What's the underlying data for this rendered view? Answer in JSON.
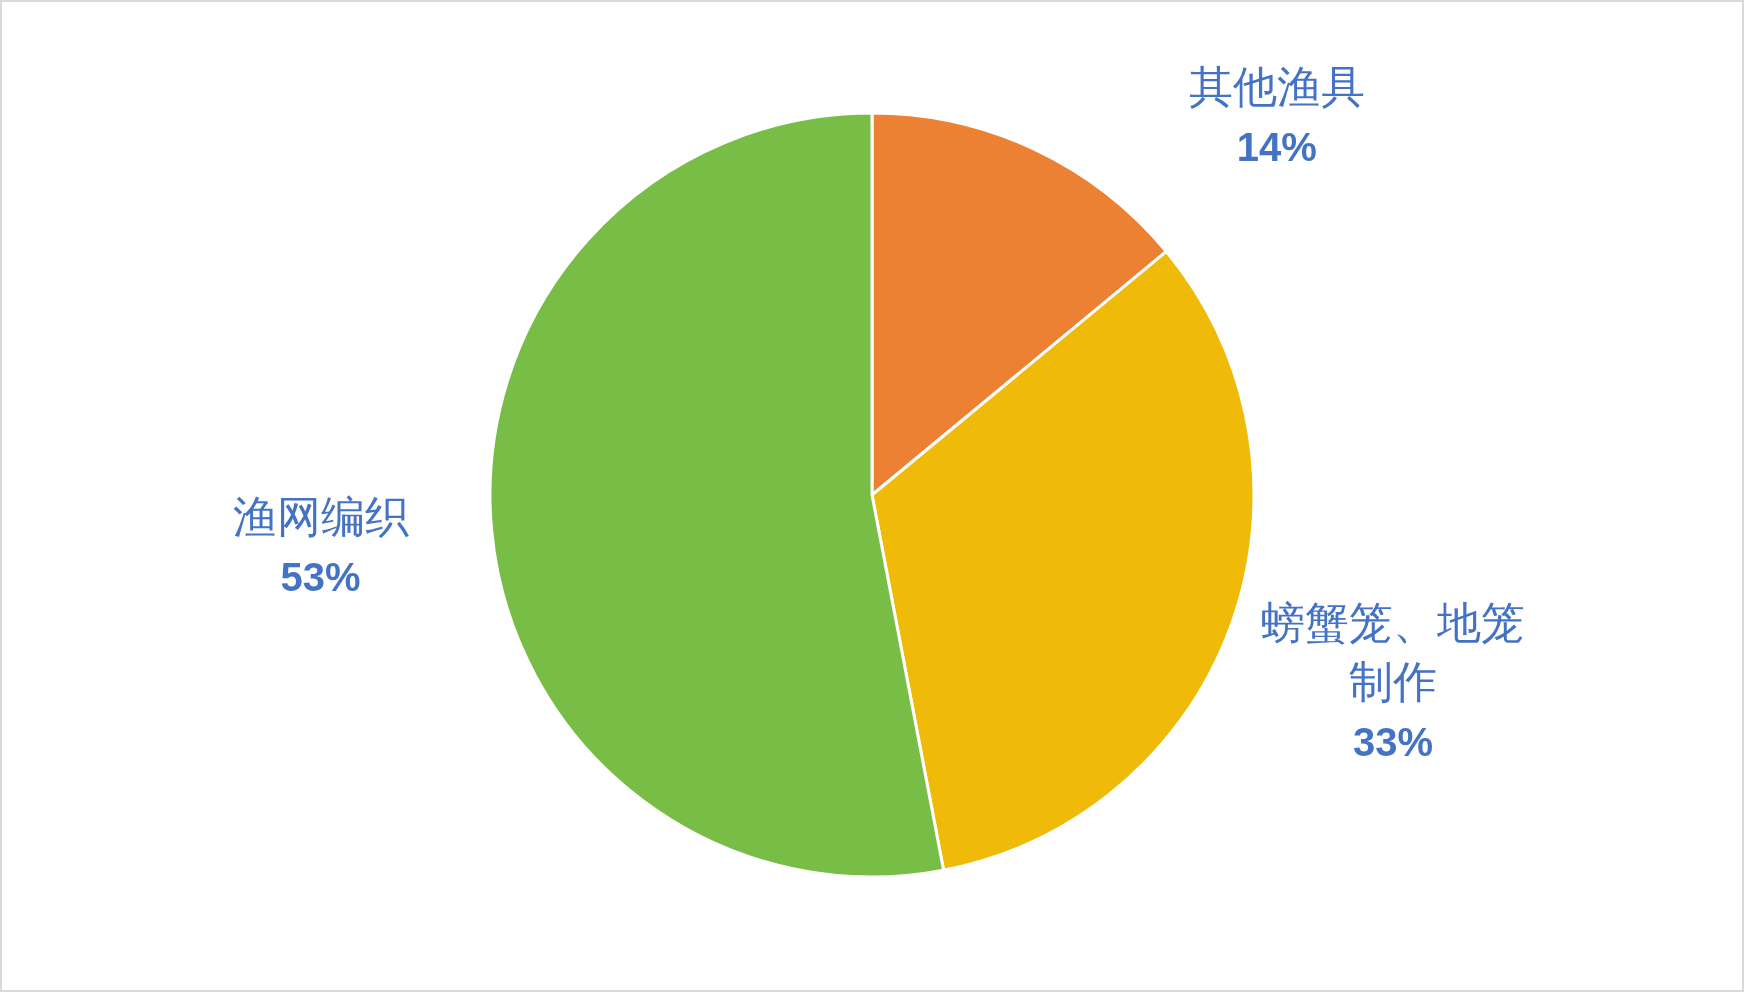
{
  "chart_data": {
    "type": "pie",
    "categories": [
      "其他渔具",
      "螃蟹笼、地笼制作",
      "渔网编织"
    ],
    "values": [
      14,
      33,
      53
    ],
    "colors": [
      "#ed8133",
      "#f0bb08",
      "#78be46"
    ],
    "value_labels": [
      "14%",
      "33%",
      "53%"
    ]
  }
}
